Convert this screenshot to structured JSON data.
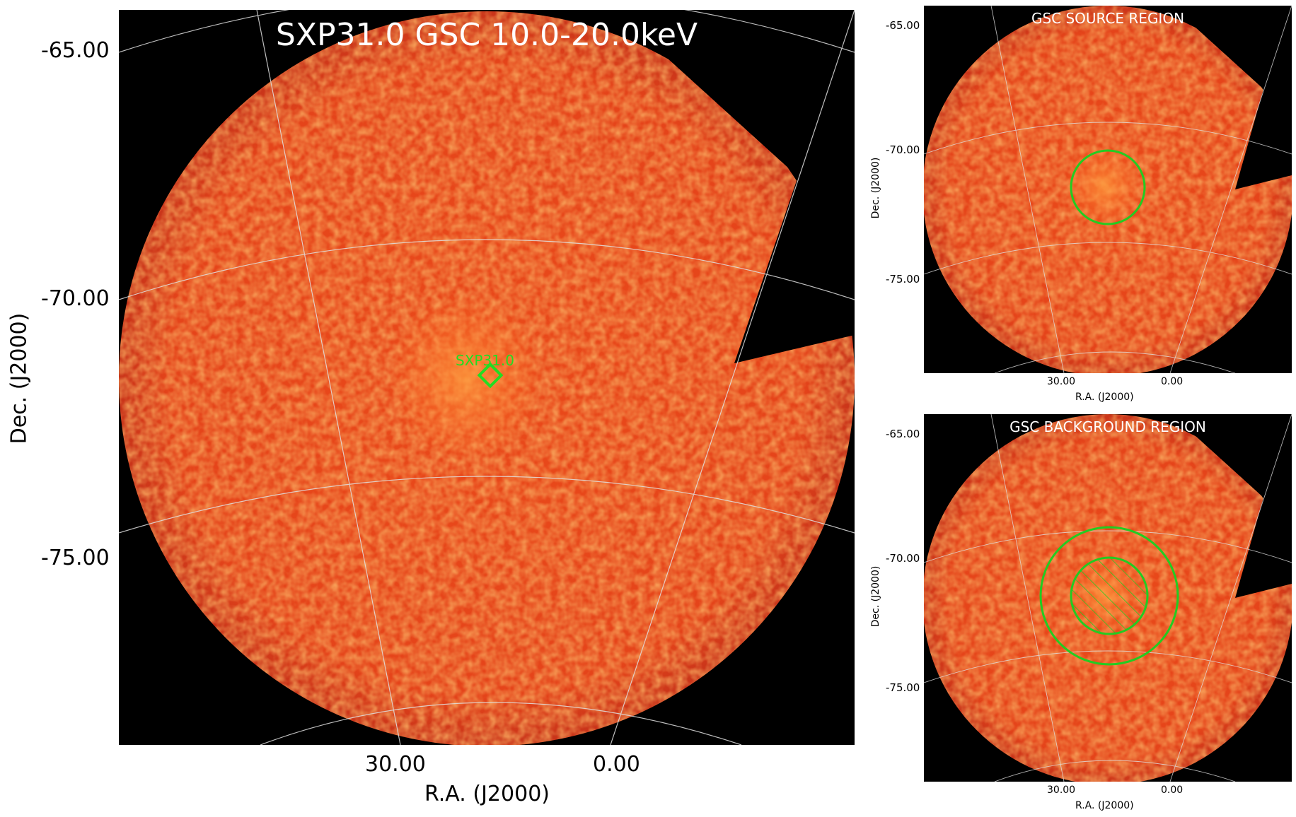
{
  "main_panel": {
    "title": "SXP31.0 GSC 10.0-20.0keV",
    "source_label": "SXP31.0",
    "y_ticks": [
      "-65.00",
      "-70.00",
      "-75.00"
    ],
    "x_ticks": [
      "30.00",
      "0.00"
    ],
    "x_axis_label": "R.A. (J2000)",
    "y_axis_label": "Dec. (J2000)"
  },
  "source_panel": {
    "title": "GSC SOURCE REGION",
    "y_ticks": [
      "-65.00",
      "-70.00",
      "-75.00"
    ],
    "x_ticks": [
      "30.00",
      "0.00"
    ],
    "x_axis_label": "R.A. (J2000)",
    "y_axis_label": "Dec. (J2000)"
  },
  "background_panel": {
    "title": "GSC BACKGROUND REGION",
    "y_ticks": [
      "-65.00",
      "-70.00",
      "-75.00"
    ],
    "x_ticks": [
      "30.00",
      "0.00"
    ],
    "x_axis_label": "R.A. (J2000)",
    "y_axis_label": "Dec. (J2000)"
  },
  "colors": {
    "field_fill": "#e8481a",
    "background": "#000000",
    "region_marker": "#22dd22",
    "grid": "#e0e0e0"
  }
}
